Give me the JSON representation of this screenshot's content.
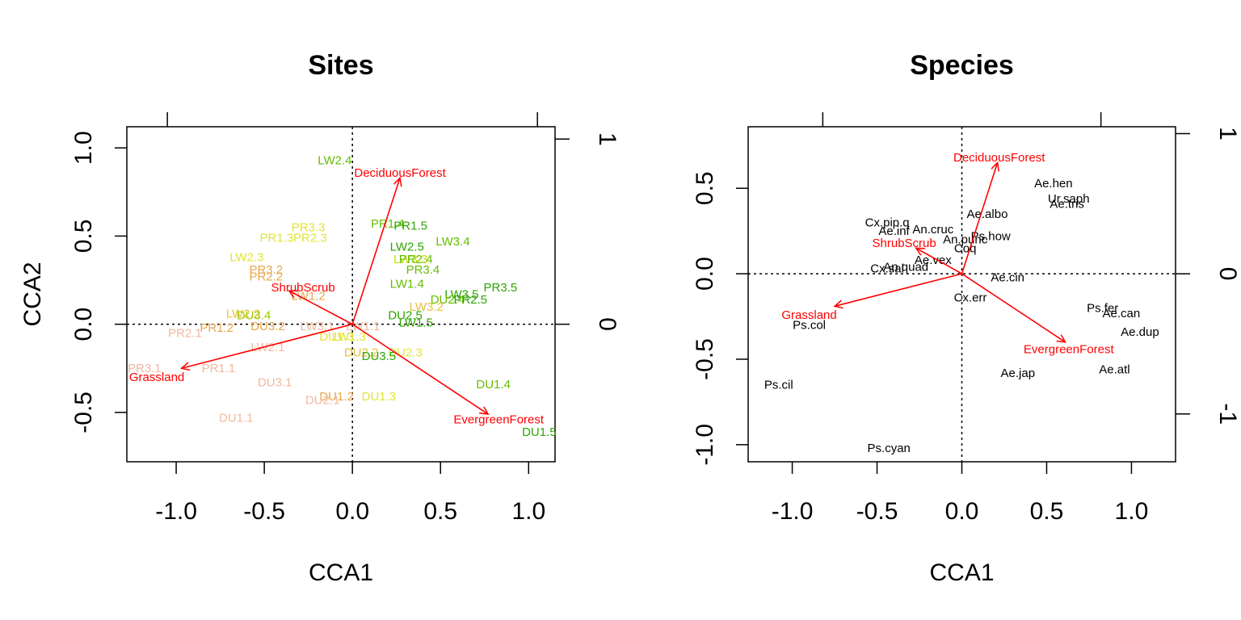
{
  "chart_data": [
    {
      "type": "scatter",
      "title": "Sites",
      "xlabel": "CCA1",
      "ylabel": "CCA2",
      "xlim": [
        -1.28,
        1.15
      ],
      "ylim": [
        -0.78,
        1.12
      ],
      "xticks": [
        -1.0,
        -0.5,
        0.0,
        0.5,
        1.0
      ],
      "xtick_labels": [
        "-1.0",
        "-0.5",
        "0.0",
        "0.5",
        "1.0"
      ],
      "yticks": [
        -0.5,
        0.0,
        0.5,
        1.0
      ],
      "ytick_labels": [
        "-0.5",
        "0.0",
        "0.5",
        "1.0"
      ],
      "top_axis_ticks": [
        -1.05,
        1.05
      ],
      "right_axis_ticks": [
        {
          "value": 1.05,
          "label": "1"
        },
        {
          "value": 0.0,
          "label": "0"
        }
      ],
      "arrow_color": "#FF0000",
      "arrows": [
        {
          "label": "DeciduousForest",
          "x": 0.27,
          "y": 0.83,
          "lx": 0.27,
          "ly": 0.86
        },
        {
          "label": "ShrubScrub",
          "x": -0.36,
          "y": 0.19,
          "lx": -0.28,
          "ly": 0.21
        },
        {
          "label": "Grassland",
          "x": -0.97,
          "y": -0.25,
          "lx": -1.11,
          "ly": -0.3
        },
        {
          "label": "EvergreenForest",
          "x": 0.77,
          "y": -0.51,
          "lx": 0.83,
          "ly": -0.54
        }
      ],
      "points": [
        {
          "label": "LW2.4",
          "x": -0.1,
          "y": 0.93,
          "color": "#66BD00"
        },
        {
          "label": "PR1.4",
          "x": 0.2,
          "y": 0.57,
          "color": "#66BD00"
        },
        {
          "label": "PR1.5",
          "x": 0.33,
          "y": 0.56,
          "color": "#2CA500"
        },
        {
          "label": "LW3.4",
          "x": 0.57,
          "y": 0.47,
          "color": "#66BD00"
        },
        {
          "label": "LW2.5",
          "x": 0.31,
          "y": 0.44,
          "color": "#2CA500"
        },
        {
          "label": "LW3.3",
          "x": 0.33,
          "y": 0.37,
          "color": "#C8DF00"
        },
        {
          "label": "PR2.4",
          "x": 0.36,
          "y": 0.37,
          "color": "#66BD00"
        },
        {
          "label": "PR3.4",
          "x": 0.4,
          "y": 0.31,
          "color": "#66BD00"
        },
        {
          "label": "LW1.4",
          "x": 0.31,
          "y": 0.23,
          "color": "#66BD00"
        },
        {
          "label": "PR3.5",
          "x": 0.84,
          "y": 0.21,
          "color": "#2CA500"
        },
        {
          "label": "LW3.5",
          "x": 0.62,
          "y": 0.17,
          "color": "#2CA500"
        },
        {
          "label": "DU2.4",
          "x": 0.54,
          "y": 0.14,
          "color": "#66BD00"
        },
        {
          "label": "PR2.5",
          "x": 0.67,
          "y": 0.14,
          "color": "#2CA500"
        },
        {
          "label": "LW3.2",
          "x": 0.42,
          "y": 0.1,
          "color": "#E8C03A"
        },
        {
          "label": "DU2.5",
          "x": 0.3,
          "y": 0.05,
          "color": "#2CA500"
        },
        {
          "label": "LW1.5",
          "x": 0.36,
          "y": 0.01,
          "color": "#2CA500"
        },
        {
          "label": "PR3.3",
          "x": -0.25,
          "y": 0.55,
          "color": "#E3E33A"
        },
        {
          "label": "PR1.3",
          "x": -0.43,
          "y": 0.49,
          "color": "#E3E33A"
        },
        {
          "label": "PR2.3",
          "x": -0.24,
          "y": 0.49,
          "color": "#E3E33A"
        },
        {
          "label": "LW2.3",
          "x": -0.6,
          "y": 0.38,
          "color": "#E3E33A"
        },
        {
          "label": "PR3.2",
          "x": -0.49,
          "y": 0.31,
          "color": "#E8A64A"
        },
        {
          "label": "PR2.2",
          "x": -0.49,
          "y": 0.27,
          "color": "#E8A64A"
        },
        {
          "label": "LW1.2",
          "x": -0.25,
          "y": 0.16,
          "color": "#E8A64A"
        },
        {
          "label": "LW2.2",
          "x": -0.62,
          "y": 0.06,
          "color": "#E8C03A"
        },
        {
          "label": "DU3.4",
          "x": -0.56,
          "y": 0.05,
          "color": "#99CC00"
        },
        {
          "label": "DU3.2",
          "x": -0.48,
          "y": -0.01,
          "color": "#E8A64A"
        },
        {
          "label": "LW3.1",
          "x": -0.2,
          "y": -0.01,
          "color": "#F0B8A0"
        },
        {
          "label": "LW1.1",
          "x": 0.06,
          "y": -0.01,
          "color": "#F0B8A0"
        },
        {
          "label": "PR1.2",
          "x": -0.77,
          "y": -0.02,
          "color": "#E8A64A"
        },
        {
          "label": "PR2.1",
          "x": -0.95,
          "y": -0.05,
          "color": "#F0B8A0"
        },
        {
          "label": "DU1.3",
          "x": -0.09,
          "y": -0.07,
          "color": "#E3E33A"
        },
        {
          "label": "LW1.3",
          "x": -0.02,
          "y": -0.07,
          "color": "#E3E33A"
        },
        {
          "label": "LW2.1",
          "x": -0.48,
          "y": -0.13,
          "color": "#F0B8A0"
        },
        {
          "label": "DU2.2",
          "x": 0.05,
          "y": -0.16,
          "color": "#E8C03A"
        },
        {
          "label": "DU2.3",
          "x": 0.3,
          "y": -0.16,
          "color": "#E3E33A"
        },
        {
          "label": "DU3.5",
          "x": 0.15,
          "y": -0.18,
          "color": "#2CA500"
        },
        {
          "label": "PR3.1",
          "x": -1.18,
          "y": -0.25,
          "color": "#F0B8A0"
        },
        {
          "label": "PR1.1",
          "x": -0.76,
          "y": -0.25,
          "color": "#F0B8A0"
        },
        {
          "label": "DU3.1",
          "x": -0.44,
          "y": -0.33,
          "color": "#F0B8A0"
        },
        {
          "label": "DU1.4",
          "x": 0.8,
          "y": -0.34,
          "color": "#66BD00"
        },
        {
          "label": "DU1.2",
          "x": -0.09,
          "y": -0.41,
          "color": "#E8A64A"
        },
        {
          "label": "DU2.1",
          "x": -0.17,
          "y": -0.43,
          "color": "#F0B8A0"
        },
        {
          "label": "DU1.3",
          "x": 0.15,
          "y": -0.41,
          "color": "#E3E33A"
        },
        {
          "label": "DU1.1",
          "x": -0.66,
          "y": -0.53,
          "color": "#F0B8A0"
        },
        {
          "label": "DU1.5",
          "x": 1.06,
          "y": -0.61,
          "color": "#2CA500"
        }
      ]
    },
    {
      "type": "scatter",
      "title": "Species",
      "xlabel": "CCA1",
      "ylabel": "",
      "xlim": [
        -1.26,
        1.26
      ],
      "ylim": [
        -1.1,
        0.86
      ],
      "xticks": [
        -1.0,
        -0.5,
        0.0,
        0.5,
        1.0
      ],
      "xtick_labels": [
        "-1.0",
        "-0.5",
        "0.0",
        "0.5",
        "1.0"
      ],
      "yticks": [
        -1.0,
        -0.5,
        0.0,
        0.5
      ],
      "ytick_labels": [
        "-1.0",
        "-0.5",
        "0.0",
        "0.5"
      ],
      "top_axis_ticks": [
        -0.82,
        0.82
      ],
      "right_axis_ticks": [
        {
          "value": 0.82,
          "label": "1"
        },
        {
          "value": 0.0,
          "label": "0"
        },
        {
          "value": -0.82,
          "label": "-1"
        }
      ],
      "arrow_color": "#FF0000",
      "point_color": "#000000",
      "arrows": [
        {
          "label": "DeciduousForest",
          "x": 0.21,
          "y": 0.65,
          "lx": 0.22,
          "ly": 0.68
        },
        {
          "label": "ShrubScrub",
          "x": -0.27,
          "y": 0.15,
          "lx": -0.34,
          "ly": 0.18
        },
        {
          "label": "Grassland",
          "x": -0.75,
          "y": -0.19,
          "lx": -0.9,
          "ly": -0.24
        },
        {
          "label": "EvergreenForest",
          "x": 0.61,
          "y": -0.4,
          "lx": 0.63,
          "ly": -0.44
        }
      ],
      "points": [
        {
          "label": "Ae.hen",
          "x": 0.54,
          "y": 0.53
        },
        {
          "label": "Ur.saph",
          "x": 0.63,
          "y": 0.44
        },
        {
          "label": "Ae.tris",
          "x": 0.62,
          "y": 0.41
        },
        {
          "label": "Ae.albo",
          "x": 0.15,
          "y": 0.35
        },
        {
          "label": "Cx.pip.q",
          "x": -0.44,
          "y": 0.3
        },
        {
          "label": "Ae.inf",
          "x": -0.4,
          "y": 0.25
        },
        {
          "label": "An.cruc",
          "x": -0.17,
          "y": 0.26
        },
        {
          "label": "Ps.how",
          "x": 0.17,
          "y": 0.22
        },
        {
          "label": "An.punc",
          "x": 0.02,
          "y": 0.2
        },
        {
          "label": "Coq",
          "x": 0.02,
          "y": 0.15
        },
        {
          "label": "Ae.vex",
          "x": -0.17,
          "y": 0.08
        },
        {
          "label": "Cx.sal",
          "x": -0.44,
          "y": 0.03
        },
        {
          "label": "An.quad",
          "x": -0.33,
          "y": 0.04
        },
        {
          "label": "Ae.cin",
          "x": 0.27,
          "y": -0.02
        },
        {
          "label": "Cx.err",
          "x": 0.05,
          "y": -0.14
        },
        {
          "label": "Ps.fer",
          "x": 0.83,
          "y": -0.2
        },
        {
          "label": "Ae.can",
          "x": 0.94,
          "y": -0.23
        },
        {
          "label": "Ps.col",
          "x": -0.9,
          "y": -0.3
        },
        {
          "label": "Ae.dup",
          "x": 1.05,
          "y": -0.34
        },
        {
          "label": "Ae.atl",
          "x": 0.9,
          "y": -0.56
        },
        {
          "label": "Ae.jap",
          "x": 0.33,
          "y": -0.58
        },
        {
          "label": "Ps.cil",
          "x": -1.08,
          "y": -0.65
        },
        {
          "label": "Ps.cyan",
          "x": -0.43,
          "y": -1.02
        }
      ]
    }
  ]
}
